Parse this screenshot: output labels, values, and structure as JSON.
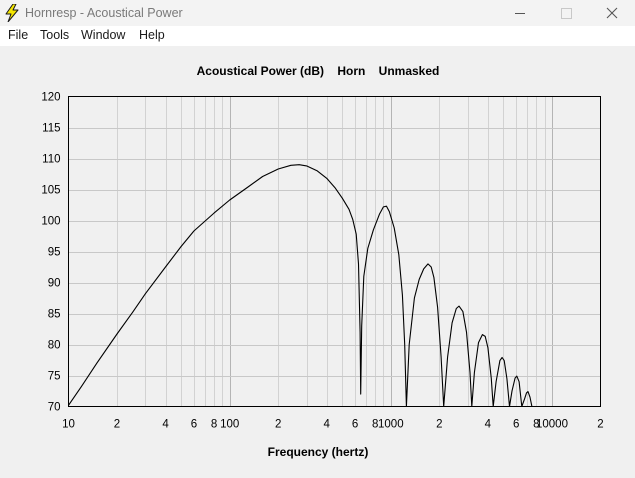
{
  "window": {
    "title": "Hornresp - Acoustical Power",
    "controls": {
      "minimize": "minimize-icon",
      "maximize": "maximize-icon",
      "close": "close-icon"
    }
  },
  "menu": {
    "items": [
      "File",
      "Tools",
      "Window",
      "Help"
    ]
  },
  "chart_data": {
    "type": "line",
    "title": "Acoustical Power (dB)    Horn    Unmasked",
    "xlabel": "Frequency (hertz)",
    "ylabel": "",
    "x_scale": "log",
    "xlim": [
      10,
      20000
    ],
    "ylim": [
      70,
      120
    ],
    "grid": true,
    "y_ticks": [
      "120",
      "115",
      "110",
      "105",
      "100",
      "95",
      "90",
      "85",
      "80",
      "75",
      "70"
    ],
    "x_tick_labels": [
      {
        "x": 10,
        "label": "10"
      },
      {
        "x": 20,
        "label": "2"
      },
      {
        "x": 40,
        "label": "4"
      },
      {
        "x": 60,
        "label": "6"
      },
      {
        "x": 80,
        "label": "8"
      },
      {
        "x": 100,
        "label": "100"
      },
      {
        "x": 200,
        "label": "2"
      },
      {
        "x": 400,
        "label": "4"
      },
      {
        "x": 600,
        "label": "6"
      },
      {
        "x": 800,
        "label": "8"
      },
      {
        "x": 1000,
        "label": "1000"
      },
      {
        "x": 2000,
        "label": "2"
      },
      {
        "x": 4000,
        "label": "4"
      },
      {
        "x": 6000,
        "label": "6"
      },
      {
        "x": 8000,
        "label": "8"
      },
      {
        "x": 10000,
        "label": "10000"
      },
      {
        "x": 20000,
        "label": "2"
      }
    ],
    "series": [
      {
        "color": "#000000",
        "points": [
          [
            10,
            70.2
          ],
          [
            12,
            73.2
          ],
          [
            15,
            77
          ],
          [
            20,
            81.7
          ],
          [
            25,
            85.2
          ],
          [
            30,
            88.2
          ],
          [
            40,
            92.5
          ],
          [
            50,
            95.8
          ],
          [
            60,
            98.3
          ],
          [
            80,
            101.2
          ],
          [
            100,
            103.3
          ],
          [
            130,
            105.4
          ],
          [
            160,
            107.1
          ],
          [
            200,
            108.3
          ],
          [
            240,
            108.9
          ],
          [
            270,
            109
          ],
          [
            300,
            108.8
          ],
          [
            350,
            108
          ],
          [
            400,
            106.8
          ],
          [
            450,
            105.3
          ],
          [
            500,
            103.6
          ],
          [
            550,
            101.8
          ],
          [
            580,
            100.2
          ],
          [
            610,
            97.8
          ],
          [
            630,
            93
          ],
          [
            645,
            82
          ],
          [
            650,
            72
          ],
          [
            660,
            83
          ],
          [
            680,
            91
          ],
          [
            720,
            95.5
          ],
          [
            780,
            98.5
          ],
          [
            850,
            101
          ],
          [
            900,
            102.2
          ],
          [
            940,
            102.3
          ],
          [
            980,
            101.4
          ],
          [
            1050,
            98.8
          ],
          [
            1120,
            94.5
          ],
          [
            1180,
            88
          ],
          [
            1220,
            80
          ],
          [
            1250,
            70
          ],
          [
            1300,
            80
          ],
          [
            1400,
            87.5
          ],
          [
            1500,
            90.5
          ],
          [
            1600,
            92.2
          ],
          [
            1700,
            93
          ],
          [
            1780,
            92.5
          ],
          [
            1850,
            90.8
          ],
          [
            1950,
            86
          ],
          [
            2050,
            78
          ],
          [
            2130,
            70
          ],
          [
            2250,
            78
          ],
          [
            2400,
            83.5
          ],
          [
            2550,
            85.8
          ],
          [
            2650,
            86.2
          ],
          [
            2800,
            85.3
          ],
          [
            2950,
            82
          ],
          [
            3100,
            75.5
          ],
          [
            3180,
            70
          ],
          [
            3300,
            75.5
          ],
          [
            3500,
            80.3
          ],
          [
            3700,
            81.6
          ],
          [
            3850,
            81.3
          ],
          [
            4000,
            79.5
          ],
          [
            4200,
            74.5
          ],
          [
            4320,
            70
          ],
          [
            4500,
            74
          ],
          [
            4750,
            77.4
          ],
          [
            4900,
            77.9
          ],
          [
            5050,
            77.4
          ],
          [
            5250,
            74.5
          ],
          [
            5450,
            70
          ],
          [
            5650,
            72.5
          ],
          [
            5900,
            74.6
          ],
          [
            6050,
            74.9
          ],
          [
            6250,
            74
          ],
          [
            6500,
            70
          ],
          [
            6750,
            71.2
          ],
          [
            6950,
            72.2
          ],
          [
            7100,
            72.4
          ],
          [
            7300,
            71.5
          ],
          [
            7500,
            70
          ]
        ]
      }
    ]
  }
}
